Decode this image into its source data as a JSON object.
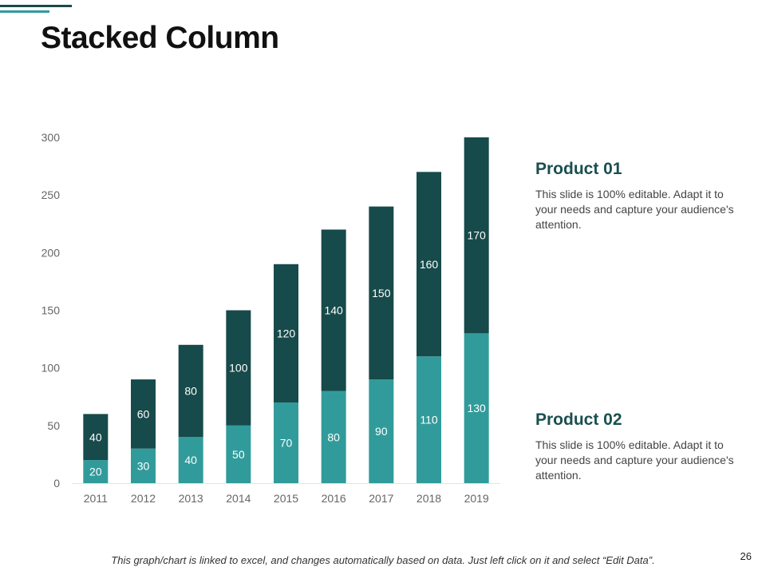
{
  "slide": {
    "title": "Stacked Column",
    "footer_note": "This graph/chart is linked to excel, and changes automatically based on data. Just left click on it and select “Edit Data”.",
    "page_number": "26"
  },
  "legend": [
    {
      "title": "Product 01",
      "description": "This slide is 100% editable. Adapt it to your needs and capture your audience's attention."
    },
    {
      "title": "Product 02",
      "description": "This slide is 100% editable. Adapt it to your needs and capture your audience's attention."
    }
  ],
  "colors": {
    "product_01": "#174a4a",
    "product_02": "#319b9b",
    "accent_dark": "#1a4a4a",
    "accent_light": "#2f9a9a"
  },
  "chart_data": {
    "type": "bar",
    "stacked": true,
    "title": "",
    "xlabel": "",
    "ylabel": "",
    "categories": [
      "2011",
      "2012",
      "2013",
      "2014",
      "2015",
      "2016",
      "2017",
      "2018",
      "2019"
    ],
    "series": [
      {
        "name": "Product 02",
        "values": [
          20,
          30,
          40,
          50,
          70,
          80,
          90,
          110,
          130
        ]
      },
      {
        "name": "Product 01",
        "values": [
          40,
          60,
          80,
          100,
          120,
          140,
          150,
          160,
          170
        ]
      }
    ],
    "ylim": [
      0,
      300
    ],
    "yticks": [
      0,
      50,
      100,
      150,
      200,
      250,
      300
    ],
    "grid": false,
    "data_labels": true
  }
}
